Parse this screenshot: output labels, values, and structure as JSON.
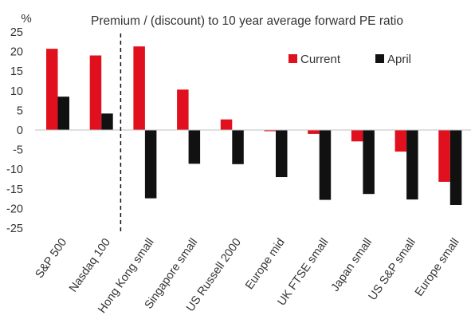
{
  "chart_data": {
    "type": "bar",
    "title": "Premium / (discount) to 10 year average forward PE ratio",
    "ylabel": "%",
    "xlabel": "",
    "ylim": [
      -25,
      25
    ],
    "yticks": [
      25,
      20,
      15,
      10,
      5,
      0,
      -5,
      -10,
      -15,
      -20,
      -25
    ],
    "grid": false,
    "legend_position": "top-right",
    "categories": [
      "S&P 500",
      "Nasdaq 100",
      "Hong Kong small",
      "Singapore small",
      "US Russell 2000",
      "Europe mid",
      "UK FTSE small",
      "Japan small",
      "US S&P small",
      "Europe small"
    ],
    "series": [
      {
        "name": "Current",
        "color": "#e0101f",
        "values": [
          20.7,
          19.0,
          21.3,
          10.3,
          2.7,
          -0.3,
          -1.0,
          -2.9,
          -5.5,
          -13.2
        ]
      },
      {
        "name": "April",
        "color": "#111111",
        "values": [
          8.5,
          4.2,
          -17.4,
          -8.6,
          -8.7,
          -12.0,
          -17.8,
          -16.3,
          -17.7,
          -19.1
        ]
      }
    ],
    "divider_after_index": 1
  }
}
